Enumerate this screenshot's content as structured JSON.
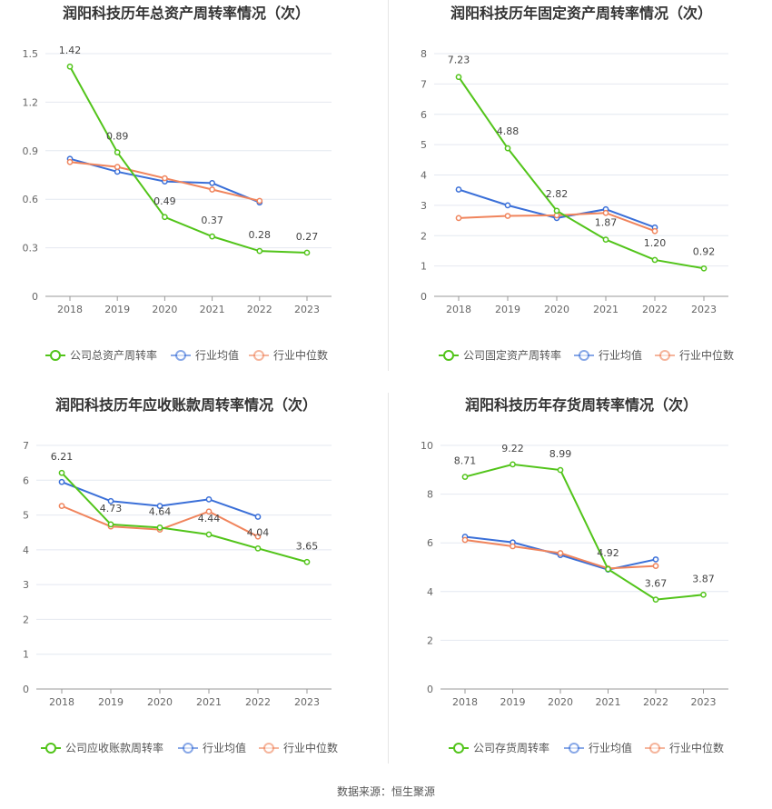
{
  "footer": "数据来源：恒生聚源",
  "colors": {
    "company": "#52c41a",
    "avg": "#3a6fd8",
    "median": "#f0845c"
  },
  "chart_data": [
    {
      "type": "line",
      "title": "润阳科技历年总资产周转率情况（次）",
      "categories": [
        "2018",
        "2019",
        "2020",
        "2021",
        "2022",
        "2023"
      ],
      "ylim": [
        0,
        1.5
      ],
      "yticks": [
        "0",
        "0.3",
        "0.6",
        "0.9",
        "1.2",
        "1.5"
      ],
      "legend": "bottom",
      "series": [
        {
          "name": "公司总资产周转率",
          "role": "company",
          "values": [
            1.42,
            0.89,
            0.49,
            0.37,
            0.28,
            0.27
          ],
          "labels": [
            "1.42",
            "0.89",
            "0.49",
            "0.37",
            "0.28",
            "0.27"
          ]
        },
        {
          "name": "行业均值",
          "role": "avg",
          "values": [
            0.85,
            0.77,
            0.71,
            0.7,
            0.58,
            null
          ]
        },
        {
          "name": "行业中位数",
          "role": "median",
          "values": [
            0.83,
            0.8,
            0.73,
            0.66,
            0.59,
            null
          ]
        }
      ]
    },
    {
      "type": "line",
      "title": "润阳科技历年固定资产周转率情况（次）",
      "categories": [
        "2018",
        "2019",
        "2020",
        "2021",
        "2022",
        "2023"
      ],
      "ylim": [
        0,
        8
      ],
      "yticks": [
        "0",
        "1",
        "2",
        "3",
        "4",
        "5",
        "6",
        "7",
        "8"
      ],
      "legend": "bottom",
      "series": [
        {
          "name": "公司固定资产周转率",
          "role": "company",
          "values": [
            7.23,
            4.88,
            2.82,
            1.87,
            1.2,
            0.92
          ],
          "labels": [
            "7.23",
            "4.88",
            "2.82",
            "1.87",
            "1.20",
            "0.92"
          ]
        },
        {
          "name": "行业均值",
          "role": "avg",
          "values": [
            3.52,
            3.0,
            2.58,
            2.87,
            2.27,
            null
          ]
        },
        {
          "name": "行业中位数",
          "role": "median",
          "values": [
            2.58,
            2.65,
            2.67,
            2.75,
            2.15,
            null
          ]
        }
      ]
    },
    {
      "type": "line",
      "title": "润阳科技历年应收账款周转率情况（次）",
      "categories": [
        "2018",
        "2019",
        "2020",
        "2021",
        "2022",
        "2023"
      ],
      "ylim": [
        0,
        7
      ],
      "yticks": [
        "0",
        "1",
        "2",
        "3",
        "4",
        "5",
        "6",
        "7"
      ],
      "legend": "bottom",
      "series": [
        {
          "name": "公司应收账款周转率",
          "role": "company",
          "values": [
            6.21,
            4.73,
            4.64,
            4.44,
            4.04,
            3.65
          ],
          "labels": [
            "6.21",
            "4.73",
            "4.64",
            "4.44",
            "4.04",
            "3.65"
          ]
        },
        {
          "name": "行业均值",
          "role": "avg",
          "values": [
            5.95,
            5.4,
            5.26,
            5.45,
            4.95,
            null
          ]
        },
        {
          "name": "行业中位数",
          "role": "median",
          "values": [
            5.26,
            4.67,
            4.58,
            5.1,
            4.38,
            null
          ]
        }
      ]
    },
    {
      "type": "line",
      "title": "润阳科技历年存货周转率情况（次）",
      "categories": [
        "2018",
        "2019",
        "2020",
        "2021",
        "2022",
        "2023"
      ],
      "ylim": [
        0,
        10
      ],
      "yticks": [
        "0",
        "2",
        "4",
        "6",
        "8",
        "10"
      ],
      "legend": "bottom",
      "series": [
        {
          "name": "公司存货周转率",
          "role": "company",
          "values": [
            8.71,
            9.22,
            8.99,
            4.92,
            3.67,
            3.87
          ],
          "labels": [
            "8.71",
            "9.22",
            "8.99",
            "4.92",
            "3.67",
            "3.87"
          ]
        },
        {
          "name": "行业均值",
          "role": "avg",
          "values": [
            6.25,
            6.02,
            5.5,
            4.9,
            5.32,
            null
          ]
        },
        {
          "name": "行业中位数",
          "role": "median",
          "values": [
            6.12,
            5.86,
            5.58,
            4.95,
            5.05,
            null
          ]
        }
      ]
    }
  ]
}
